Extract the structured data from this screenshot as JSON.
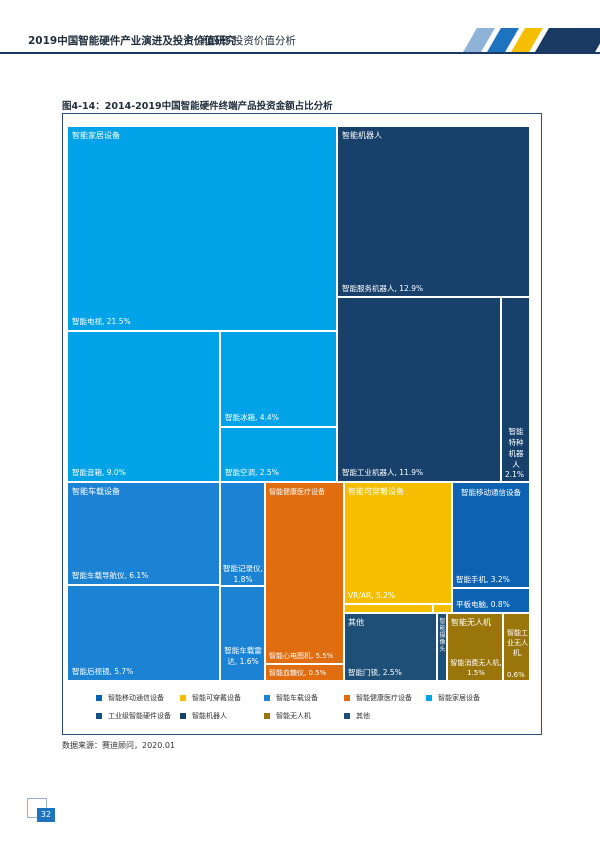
{
  "header": {
    "title": "2019中国智能硬件产业演进及投资价值研究",
    "separator": "|",
    "chapter": "第四章 投资价值分析"
  },
  "colors": {
    "home": "#00a3e8",
    "robot": "#17406b",
    "vehicle": "#1b82d4",
    "health": "#e06d10",
    "wearable": "#f5bf00",
    "mobile": "#0d63b2",
    "industrial": "#16517e",
    "drone": "#9a7509",
    "other": "#1d4f77"
  },
  "figure": {
    "title": "图4-14：2014-2019中国智能硬件终端产品投资金额占比分析",
    "source": "数据来源：赛迪顾问，2020.01"
  },
  "chart_data": {
    "type": "treemap",
    "title": "图4-14：2014-2019中国智能硬件终端产品投资金额占比分析",
    "groups": [
      {
        "name": "智能家居设备",
        "items": [
          {
            "label": "智能电视",
            "value": 21.5
          },
          {
            "label": "智能音箱",
            "value": 9.0
          },
          {
            "label": "智能冰箱",
            "value": 4.4
          },
          {
            "label": "智能空调",
            "value": 2.5
          }
        ]
      },
      {
        "name": "智能机器人",
        "items": [
          {
            "label": "智能服务机器人",
            "value": 12.9
          },
          {
            "label": "智能工业机器人",
            "value": 11.9
          },
          {
            "label": "智能特种机器人",
            "value": 2.1
          }
        ]
      },
      {
        "name": "智能车载设备",
        "items": [
          {
            "label": "智能车载导航仪",
            "value": 6.1
          },
          {
            "label": "智能后视镜",
            "value": 5.7
          },
          {
            "label": "智能记录仪",
            "value": 1.8
          },
          {
            "label": "智能车载雷达",
            "value": 1.6
          }
        ]
      },
      {
        "name": "智能健康医疗设备",
        "items": [
          {
            "label": "智能心电图机",
            "value": 5.5
          },
          {
            "label": "智能血糖仪",
            "value": 0.5
          }
        ]
      },
      {
        "name": "智能可穿戴设备",
        "items": [
          {
            "label": "VR/AR",
            "value": 5.2
          }
        ]
      },
      {
        "name": "智能移动通信设备",
        "items": [
          {
            "label": "智能手机",
            "value": 3.2
          },
          {
            "label": "平板电脑",
            "value": 0.8
          }
        ]
      },
      {
        "name": "其他",
        "items": [
          {
            "label": "智能门锁",
            "value": 2.5
          },
          {
            "label": "智能摄像头",
            "value": null
          }
        ]
      },
      {
        "name": "智能无人机",
        "items": [
          {
            "label": "智能消费无人机",
            "value": 1.5
          },
          {
            "label": "智能工业无人机",
            "value": 0.6
          }
        ]
      }
    ],
    "legend": [
      "智能移动通信设备",
      "智能可穿戴设备",
      "智能车载设备",
      "智能健康医疗设备",
      "智能家居设备",
      "工业级智能硬件设备",
      "智能机器人",
      "智能无人机",
      "其他"
    ]
  },
  "cells": {
    "home_group": "智能家居设备",
    "tv": "智能电视, 21.5%",
    "speaker": "智能音箱, 9.0%",
    "fridge": "智能冰箱, 4.4%",
    "ac": "智能空调, 2.5%",
    "robot_group": "智能机器人",
    "service_robot": "智能服务机器人, 12.9%",
    "industrial_robot": "智能工业机器人, 11.9%",
    "special_robot": "智能特种机器人",
    "special_robot_value": "2.1%",
    "vehicle_group": "智能车载设备",
    "nav": "智能车载导航仪, 6.1%",
    "mirror": "智能后视镜, 5.7%",
    "recorder": "智能记录仪, 1.8%",
    "radar": "智能车载雷达, 1.6%",
    "health_group": "智能健康医疗设备",
    "ecg": "智能心电图机, 5.5%",
    "glucose": "智能血糖仪, 0.5%",
    "wearable_group": "智能可穿戴设备",
    "vrar": "VR/AR, 5.2%",
    "mobile_group": "智能移动通信设备",
    "phone": "智能手机, 3.2%",
    "tablet": "平板电脑, 0.8%",
    "other_group": "其他",
    "lock": "智能门锁, 2.5%",
    "camera": "智能摄像头",
    "drone_group": "智能无人机",
    "consumer_drone": "智能消费无人机, 1.5%",
    "industrial_drone": "智能工业无人机,",
    "industrial_drone_value": "0.6%"
  },
  "legend": {
    "mobile": "智能移动通信设备",
    "wearable": "智能可穿戴设备",
    "vehicle": "智能车载设备",
    "health": "智能健康医疗设备",
    "home": "智能家居设备",
    "industrial": "工业级智能硬件设备",
    "robot": "智能机器人",
    "drone": "智能无人机",
    "other": "其他"
  },
  "page": {
    "number": "32"
  }
}
